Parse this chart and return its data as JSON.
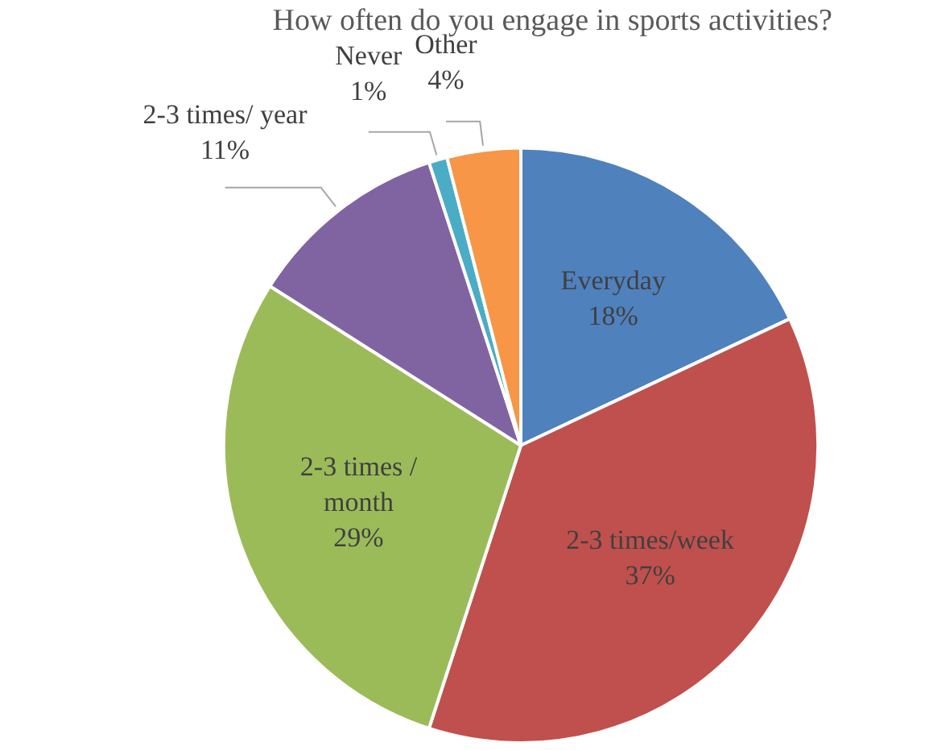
{
  "chart_data": {
    "type": "pie",
    "title": "How often do you engage in sports activities?",
    "categories": [
      "Everyday",
      "2-3 times/week",
      "2-3 times / month",
      "2-3 times/ year",
      "Never",
      "Other"
    ],
    "values": [
      18,
      37,
      29,
      11,
      1,
      4
    ],
    "colors": [
      "#4f81bd",
      "#c0504d",
      "#9bbb59",
      "#8064a2",
      "#4bacc6",
      "#f79646"
    ],
    "value_labels": [
      "18%",
      "37%",
      "29%",
      "11%",
      "1%",
      "4%"
    ],
    "legend": false
  }
}
